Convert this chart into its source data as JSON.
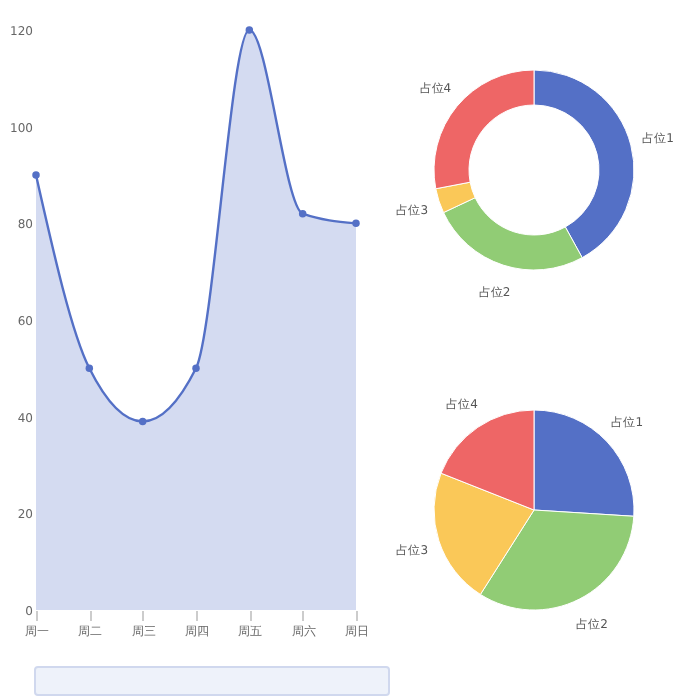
{
  "chart_data": [
    {
      "type": "area",
      "categories": [
        "周一",
        "周二",
        "周三",
        "周四",
        "周五",
        "周六",
        "周日"
      ],
      "series": [
        {
          "color": "#5470c6",
          "values": [
            90,
            50,
            39,
            50,
            120,
            82,
            80
          ]
        }
      ],
      "ylim": [
        0,
        120
      ],
      "yticks": [
        0,
        20,
        40,
        60,
        80,
        100,
        120
      ],
      "grid": false,
      "legend": false,
      "marker": "circle"
    },
    {
      "type": "donut",
      "categories": [
        "占位1",
        "占位2",
        "占位3",
        "占位4"
      ],
      "values": [
        42,
        26,
        4,
        28
      ],
      "colors": [
        "#5470c6",
        "#91cc75",
        "#fac858",
        "#ee6666"
      ],
      "legend": false
    },
    {
      "type": "pie",
      "categories": [
        "占位1",
        "占位2",
        "占位3",
        "占位4"
      ],
      "values": [
        26,
        33,
        22,
        19
      ],
      "colors": [
        "#5470c6",
        "#91cc75",
        "#fac858",
        "#ee6666"
      ],
      "legend": false
    }
  ]
}
